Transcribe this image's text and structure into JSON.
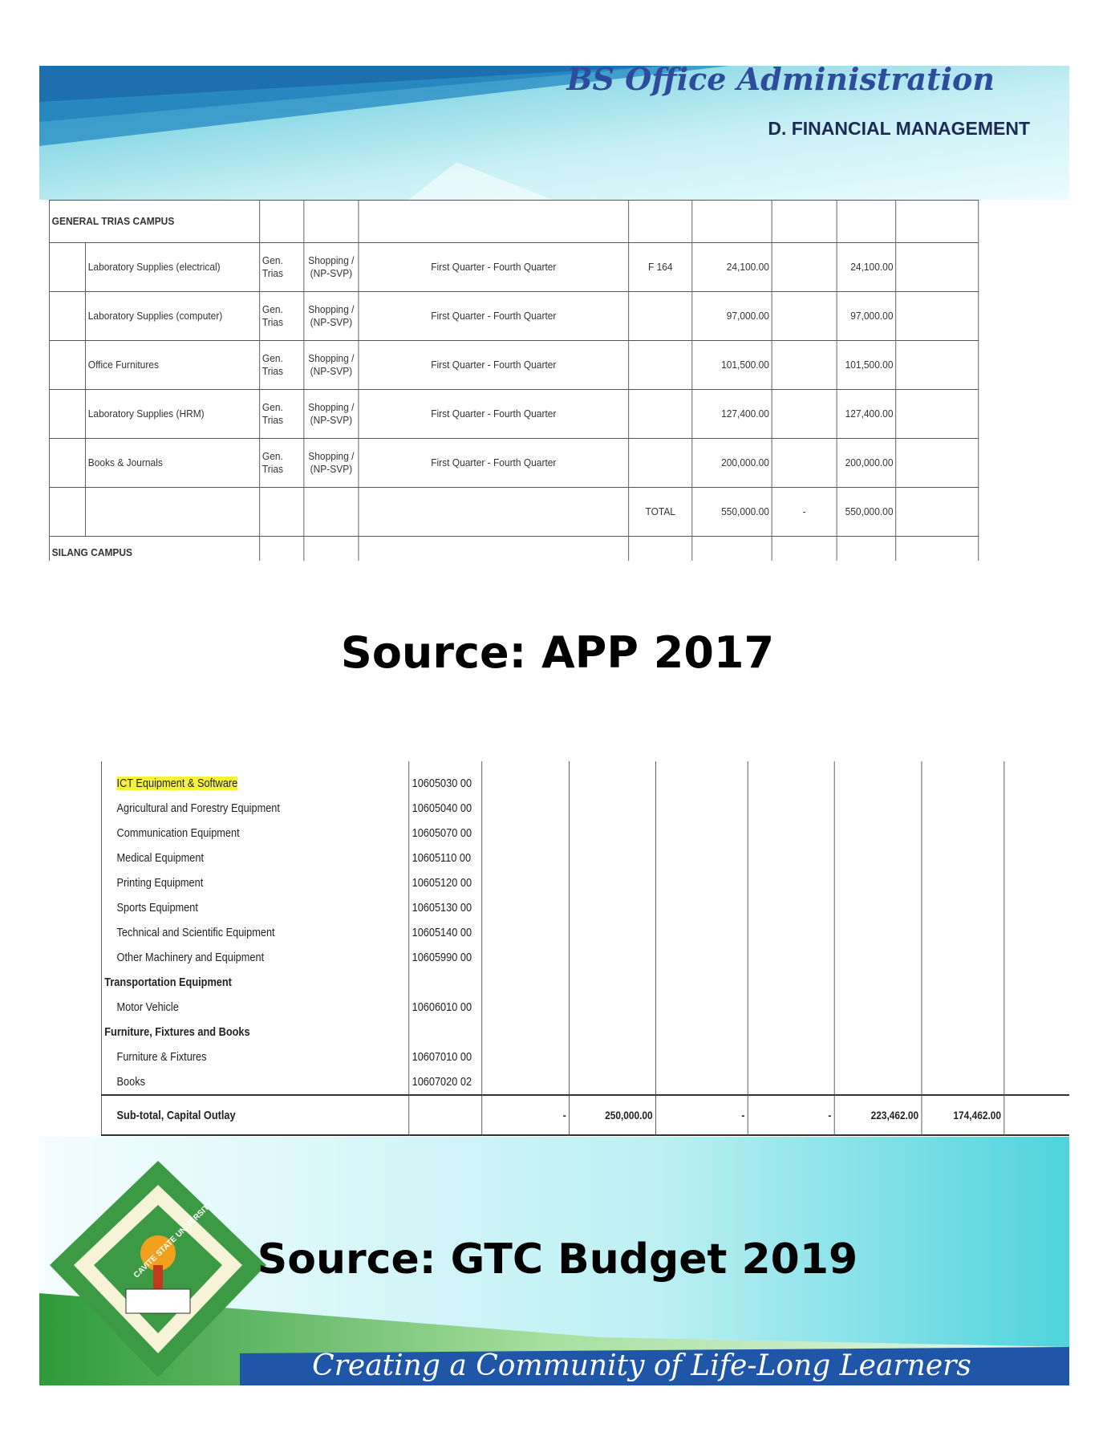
{
  "header": {
    "title": "BS Office Administration",
    "subtitle": "D. FINANCIAL MANAGEMENT"
  },
  "table_1": {
    "section": "GENERAL TRIAS CAMPUS",
    "rows": [
      [
        null,
        "Laboratory Supplies (electrical)",
        "Gen. Trias",
        "Shopping / (NP-SVP)",
        "First Quarter - Fourth Quarter",
        "F 164",
        "24,100.00",
        null,
        "24,100.00",
        null
      ],
      [
        null,
        "Laboratory Supplies (computer)",
        "Gen. Trias",
        "Shopping / (NP-SVP)",
        "First Quarter - Fourth Quarter",
        null,
        "97,000.00",
        null,
        "97,000.00",
        null
      ],
      [
        null,
        "Office Furnitures",
        "Gen. Trias",
        "Shopping / (NP-SVP)",
        "First Quarter - Fourth Quarter",
        null,
        "101,500.00",
        null,
        "101,500.00",
        null
      ],
      [
        null,
        "Laboratory Supplies (HRM)",
        "Gen. Trias",
        "Shopping / (NP-SVP)",
        "First Quarter - Fourth Quarter",
        null,
        "127,400.00",
        null,
        "127,400.00",
        null
      ],
      [
        null,
        "Books & Journals",
        "Gen. Trias",
        "Shopping / (NP-SVP)",
        "First Quarter - Fourth Quarter",
        null,
        "200,000.00",
        null,
        "200,000.00",
        null
      ]
    ],
    "total_row": [
      null,
      null,
      null,
      null,
      null,
      "TOTAL",
      "550,000.00",
      "-",
      "550,000.00",
      null
    ],
    "next_section": "SILANG CAMPUS"
  },
  "source_1": "Source: APP 2017",
  "table_2": {
    "rows": [
      {
        "label": "ICT Equipment & Software",
        "code": "10605030 00"
      },
      {
        "label": "Agricultural and Forestry Equipment",
        "code": "10605040 00"
      },
      {
        "label": "Communication Equipment",
        "code": "10605070 00"
      },
      {
        "label": "Medical Equipment",
        "code": "10605110 00"
      },
      {
        "label": "Printing Equipment",
        "code": "10605120 00"
      },
      {
        "label": "Sports Equipment",
        "code": "10605130 00"
      },
      {
        "label": "Technical and Scientific Equipment",
        "code": "10605140 00"
      },
      {
        "label": "Other Machinery and Equipment",
        "code": "10605990 00"
      },
      {
        "label": "Transportation Equipment",
        "code": null
      },
      {
        "label": "Motor Vehicle",
        "code": "10606010 00"
      },
      {
        "label": "Furniture, Fixtures and Books",
        "code": null
      },
      {
        "label": "Furniture & Fixtures",
        "code": "10607010 00"
      },
      {
        "label": "Books",
        "code": "10607020 02"
      }
    ],
    "subtotal": {
      "label": "Sub-total, Capital Outlay",
      "cells": [
        null,
        "-",
        "250,000.00",
        "-",
        "-",
        "223,462.00",
        "174,462.00",
        null
      ]
    }
  },
  "source_2": "Source: GTC Budget 2019",
  "footer": {
    "logo_text": "CAVITE STATE UNIVERSITY",
    "tagline": "Creating a Community of Life-Long Learners"
  }
}
